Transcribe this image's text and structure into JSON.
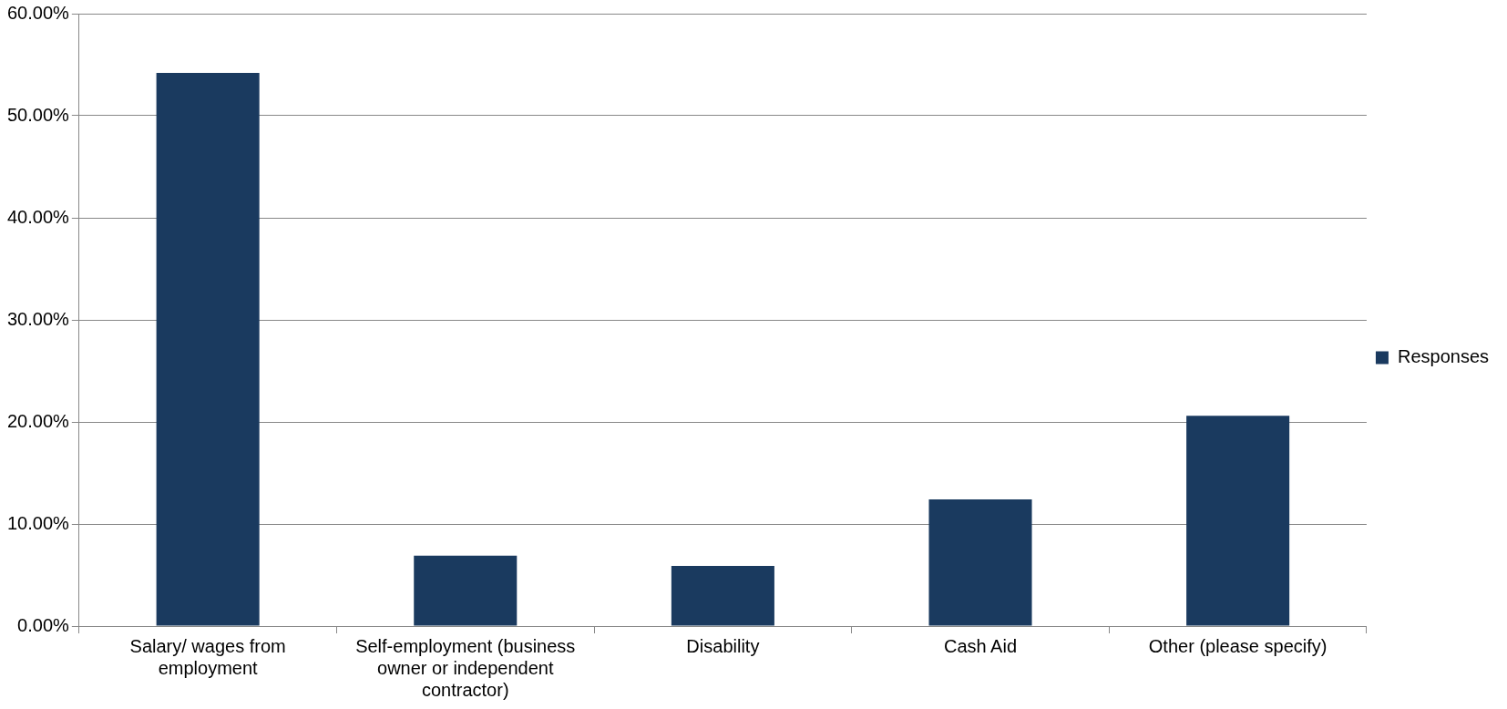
{
  "chart_data": {
    "type": "bar",
    "categories": [
      "Salary/ wages from employment",
      "Self-employment (business owner or independent contractor)",
      "Disability",
      "Cash Aid",
      "Other (please specify)"
    ],
    "series": [
      {
        "name": "Responses",
        "color": "#1a3a5f",
        "values": [
          54.2,
          6.9,
          5.9,
          12.4,
          20.6
        ]
      }
    ],
    "ylim": [
      0,
      60
    ],
    "yticks": [
      {
        "value": 0,
        "label": "0.00%"
      },
      {
        "value": 10,
        "label": "10.00%"
      },
      {
        "value": 20,
        "label": "20.00%"
      },
      {
        "value": 30,
        "label": "30.00%"
      },
      {
        "value": 40,
        "label": "40.00%"
      },
      {
        "value": 50,
        "label": "50.00%"
      },
      {
        "value": 60,
        "label": "60.00%"
      }
    ],
    "grid": "y",
    "legend": "right"
  }
}
